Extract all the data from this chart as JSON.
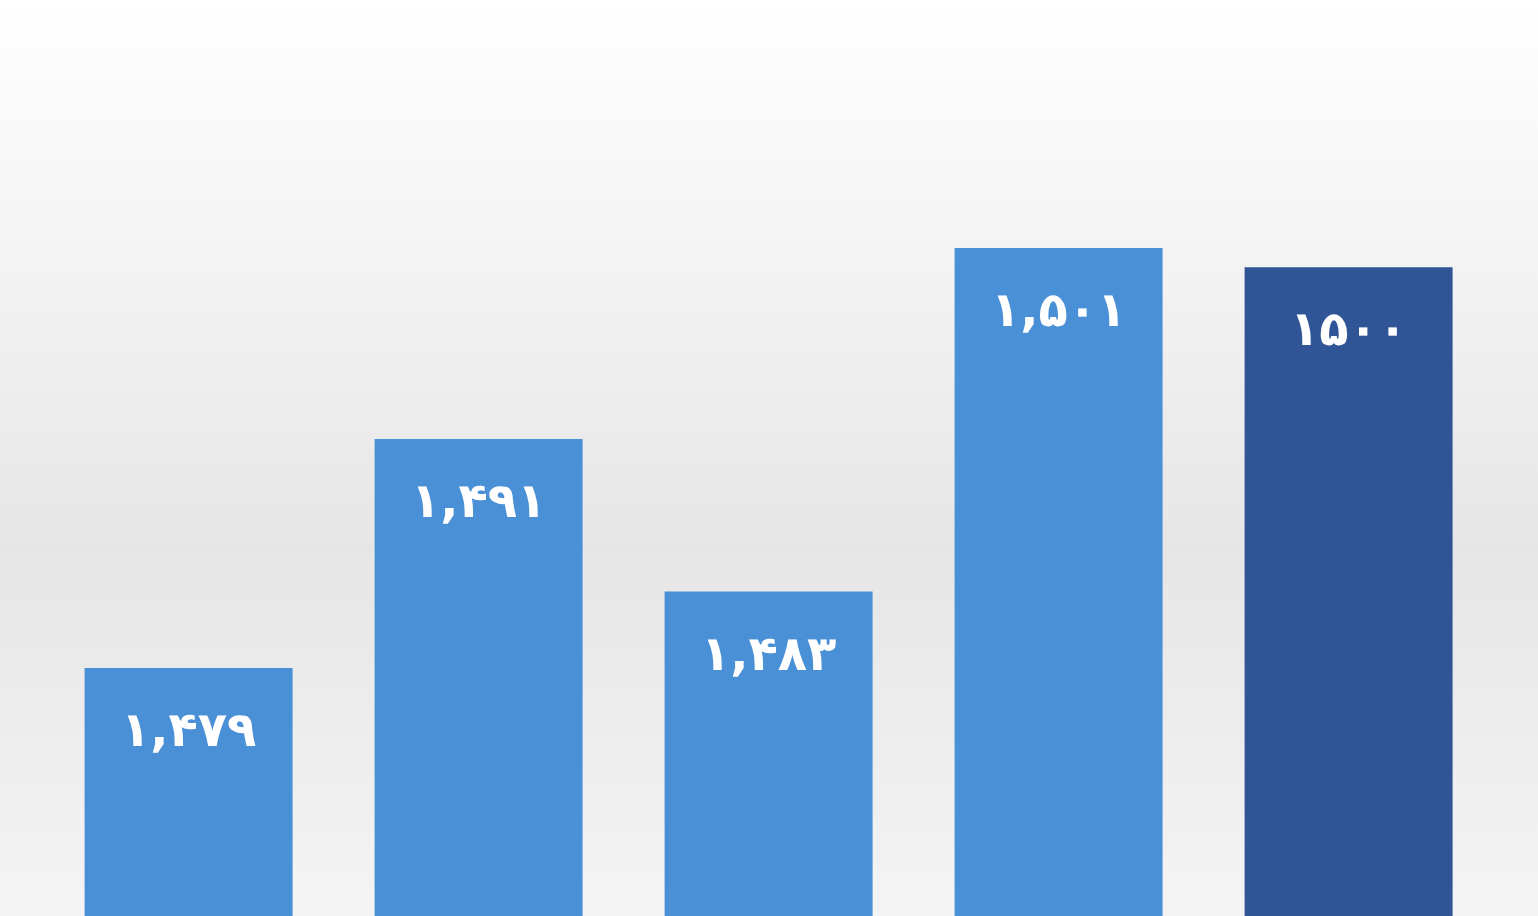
{
  "chart_data": {
    "type": "bar",
    "categories": [
      null,
      null,
      null,
      null,
      null
    ],
    "values": [
      1479,
      1491,
      1483,
      1501,
      1500
    ],
    "colors": [
      "#4a90d6",
      "#4a90d6",
      "#4a90d6",
      "#4a90d6",
      "#2f5597"
    ],
    "value_labels": [
      "۱,۴۷۹",
      "۱,۴۹۱",
      "۱,۴۸۳",
      "۱,۵۰۱",
      "۱۵۰۰"
    ],
    "ylim": [
      1466,
      1514
    ],
    "tick_labels": false
  }
}
